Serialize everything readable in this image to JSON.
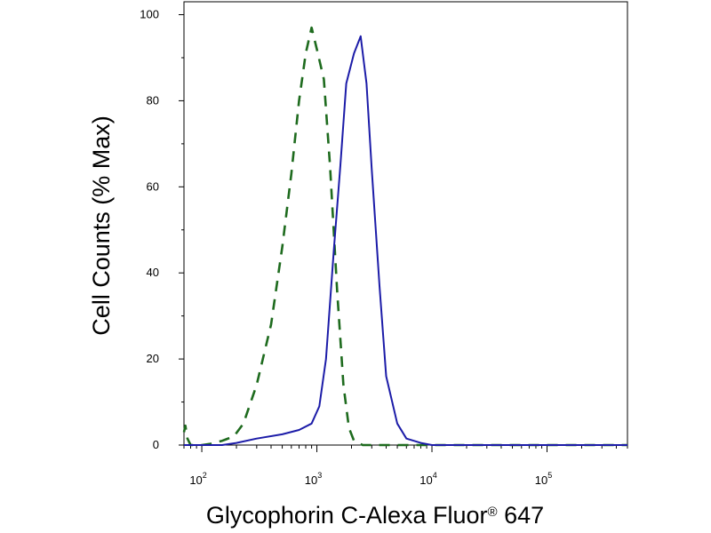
{
  "chart_data": {
    "type": "line",
    "title": "",
    "ylabel": "Cell Counts (% Max)",
    "xlabel": {
      "main": "Glycophorin C-Alexa Fluor",
      "mark": "®",
      "suffix": " 647"
    },
    "xscale": "log",
    "xlim": [
      70,
      500000
    ],
    "ylim": [
      0,
      103
    ],
    "y_ticks": [
      0,
      20,
      40,
      60,
      80,
      100
    ],
    "y_tick_labels": [
      "0",
      "20",
      "40",
      "60",
      "80",
      "100"
    ],
    "x_ticks": [
      {
        "value": 100,
        "base": "10",
        "exp": "2"
      },
      {
        "value": 1000,
        "base": "10",
        "exp": "3"
      },
      {
        "value": 10000,
        "base": "10",
        "exp": "4"
      },
      {
        "value": 100000,
        "base": "10",
        "exp": "5"
      }
    ],
    "grid": false,
    "legend": "none",
    "series": [
      {
        "style": "dashed",
        "color": "#1e6b1e",
        "points": [
          [
            70,
            3
          ],
          [
            72,
            4.5
          ],
          [
            75,
            1.5
          ],
          [
            80,
            0
          ],
          [
            100,
            0
          ],
          [
            120,
            0.3
          ],
          [
            150,
            1
          ],
          [
            190,
            2
          ],
          [
            230,
            5
          ],
          [
            300,
            14
          ],
          [
            400,
            28
          ],
          [
            500,
            46
          ],
          [
            600,
            63
          ],
          [
            700,
            80
          ],
          [
            800,
            91
          ],
          [
            900,
            97
          ],
          [
            1000,
            92
          ],
          [
            1150,
            85
          ],
          [
            1300,
            65
          ],
          [
            1500,
            36
          ],
          [
            1700,
            14
          ],
          [
            1900,
            4
          ],
          [
            2100,
            1
          ],
          [
            2500,
            0
          ],
          [
            500000,
            0
          ]
        ]
      },
      {
        "style": "solid",
        "color": "#1c1ca8",
        "points": [
          [
            70,
            0
          ],
          [
            150,
            0
          ],
          [
            200,
            0.5
          ],
          [
            300,
            1.5
          ],
          [
            500,
            2.5
          ],
          [
            700,
            3.5
          ],
          [
            900,
            5
          ],
          [
            1050,
            9
          ],
          [
            1200,
            20
          ],
          [
            1400,
            45
          ],
          [
            1600,
            65
          ],
          [
            1800,
            84
          ],
          [
            2100,
            91
          ],
          [
            2400,
            95
          ],
          [
            2700,
            84
          ],
          [
            3000,
            64
          ],
          [
            3500,
            37
          ],
          [
            4000,
            16
          ],
          [
            5000,
            5
          ],
          [
            6000,
            1.5
          ],
          [
            8000,
            0.5
          ],
          [
            10000,
            0
          ],
          [
            500000,
            0
          ]
        ]
      }
    ]
  }
}
